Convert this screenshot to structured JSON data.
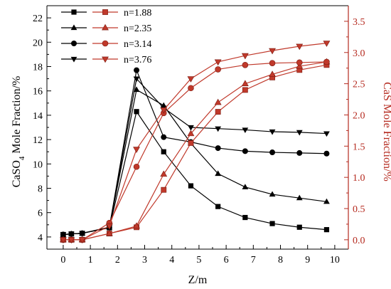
{
  "chart_data": {
    "type": "line",
    "xlabel": "Z/m",
    "ylabel_left_main": "CaSO",
    "ylabel_left_sub": "4",
    "ylabel_left_rest": " Mole Fraction/%",
    "ylabel_right": "CaS Mole Fraction/%",
    "xlim": [
      -0.6,
      10.5
    ],
    "ylim_left": [
      3.0,
      23.0
    ],
    "ylim_right": [
      -0.15,
      3.75
    ],
    "x_ticks": [
      0,
      1,
      2,
      3,
      4,
      5,
      6,
      7,
      8,
      9,
      10
    ],
    "y_left_ticks": [
      4,
      6,
      8,
      10,
      12,
      14,
      16,
      18,
      20,
      22
    ],
    "y_right_ticks": [
      "0.0",
      "0.5",
      "1.0",
      "1.5",
      "2.0",
      "2.5",
      "3.0",
      "3.5"
    ],
    "x_tick_labels": [
      "0",
      "1",
      "2",
      "3",
      "4",
      "5",
      "6",
      "7",
      "8",
      "9",
      "10"
    ],
    "y_left_tick_labels": [
      "4",
      "6",
      "8",
      "10",
      "12",
      "14",
      "16",
      "18",
      "20",
      "22"
    ],
    "grid": false,
    "legend_position": "top-left",
    "colors": {
      "left_axis": "#000000",
      "right_axis": "#b52a1f",
      "black_series": "#000000",
      "red_series": "#c0392b"
    },
    "series_left": [
      {
        "name": "n=1.88",
        "marker": "square",
        "x": [
          0,
          0.3,
          0.7,
          1.7,
          2.7,
          3.7,
          4.7,
          5.7,
          6.7,
          7.7,
          8.7,
          9.7
        ],
        "values": [
          4.2,
          4.25,
          4.3,
          4.75,
          14.3,
          11.0,
          8.2,
          6.5,
          5.6,
          5.1,
          4.8,
          4.6
        ]
      },
      {
        "name": "n=2.35",
        "marker": "triangle-up",
        "x": [
          0,
          0.3,
          0.7,
          1.7,
          2.7,
          3.7,
          4.7,
          5.7,
          6.7,
          7.7,
          8.7,
          9.7
        ],
        "values": [
          4.2,
          4.25,
          4.3,
          4.8,
          16.1,
          14.8,
          11.7,
          9.2,
          8.1,
          7.5,
          7.2,
          6.9
        ]
      },
      {
        "name": "n=3.14",
        "marker": "circle",
        "x": [
          0,
          0.3,
          0.7,
          1.7,
          2.7,
          3.7,
          4.7,
          5.7,
          6.7,
          7.7,
          8.7,
          9.7
        ],
        "values": [
          4.2,
          4.25,
          4.3,
          4.8,
          17.7,
          12.2,
          11.8,
          11.3,
          11.05,
          10.95,
          10.9,
          10.85
        ]
      },
      {
        "name": "n=3.76",
        "marker": "triangle-down",
        "x": [
          0,
          0.3,
          0.7,
          1.7,
          2.7,
          3.7,
          4.7,
          5.7,
          6.7,
          7.7,
          8.7,
          9.7
        ],
        "values": [
          4.2,
          4.25,
          4.3,
          4.8,
          17.0,
          14.6,
          13.0,
          12.9,
          12.8,
          12.65,
          12.6,
          12.5
        ]
      }
    ],
    "series_right": [
      {
        "name": "n=1.88",
        "marker": "square",
        "x": [
          0,
          0.3,
          0.7,
          1.7,
          2.7,
          3.7,
          4.7,
          5.7,
          6.7,
          7.7,
          8.7,
          9.7
        ],
        "values": [
          0.0,
          0.0,
          0.0,
          0.1,
          0.2,
          0.8,
          1.55,
          2.05,
          2.4,
          2.6,
          2.72,
          2.8
        ]
      },
      {
        "name": "n=2.35",
        "marker": "triangle-up",
        "x": [
          0,
          0.3,
          0.7,
          1.7,
          2.7,
          3.7,
          4.7,
          5.7,
          6.7,
          7.7,
          8.7,
          9.7
        ],
        "values": [
          0.0,
          0.0,
          0.0,
          0.1,
          0.22,
          1.05,
          1.7,
          2.2,
          2.5,
          2.65,
          2.78,
          2.85
        ]
      },
      {
        "name": "n=3.14",
        "marker": "circle",
        "x": [
          0,
          0.3,
          0.7,
          1.7,
          2.7,
          3.7,
          4.7,
          5.7,
          6.7,
          7.7,
          8.7,
          9.7
        ],
        "values": [
          0.0,
          0.0,
          0.0,
          0.27,
          1.17,
          2.03,
          2.43,
          2.73,
          2.8,
          2.83,
          2.84,
          2.85
        ]
      },
      {
        "name": "n=3.76",
        "marker": "triangle-down",
        "x": [
          0,
          0.3,
          0.7,
          1.7,
          2.7,
          3.7,
          4.7,
          5.7,
          6.7,
          7.7,
          8.7,
          9.7
        ],
        "values": [
          0.0,
          0.0,
          0.0,
          0.22,
          1.45,
          2.08,
          2.58,
          2.85,
          2.95,
          3.03,
          3.1,
          3.15
        ]
      }
    ]
  }
}
